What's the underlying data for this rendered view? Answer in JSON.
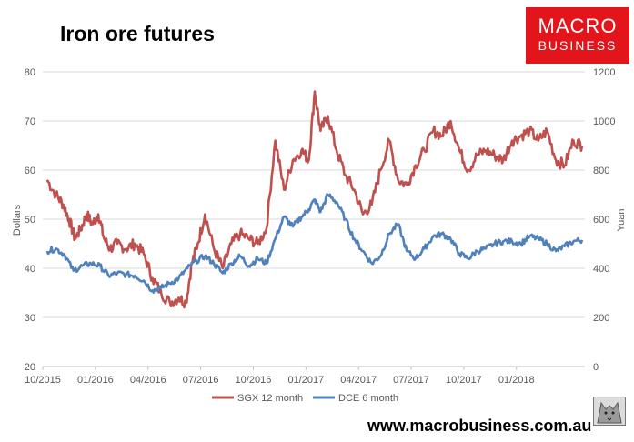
{
  "header": {
    "title": "Iron ore futures",
    "logo_line1": "MACRO",
    "logo_line2": "BUSINESS",
    "url": "www.macrobusiness.com.au"
  },
  "colors": {
    "sgx": "#c0504d",
    "dce": "#4f81bd",
    "logo_bg": "#e4141b",
    "grid": "#d9d9d9"
  },
  "chart_data": {
    "type": "line",
    "title": "Iron ore futures",
    "x_tick_labels": [
      "10/2015",
      "01/2016",
      "04/2016",
      "07/2016",
      "10/2016",
      "01/2017",
      "04/2017",
      "07/2017",
      "10/2017",
      "01/2018"
    ],
    "y_left": {
      "label": "Dollars",
      "ticks": [
        20,
        30,
        40,
        50,
        60,
        70,
        80
      ],
      "range": [
        20,
        80
      ]
    },
    "y_right": {
      "label": "Yuan",
      "ticks": [
        0,
        200,
        400,
        600,
        800,
        1000,
        1200
      ],
      "range": [
        0,
        1200
      ]
    },
    "grid": "horizontal",
    "legend_position": "bottom",
    "series": [
      {
        "name": "SGX 12 month",
        "axis": "left",
        "color": "#c0504d",
        "points": [
          [
            "10/2015",
            58
          ],
          [
            "10/2015",
            55
          ],
          [
            "11/2015",
            53
          ],
          [
            "11/2015",
            50
          ],
          [
            "11/2015",
            46
          ],
          [
            "12/2015",
            48
          ],
          [
            "12/2015",
            51
          ],
          [
            "12/2015",
            49
          ],
          [
            "01/2016",
            51
          ],
          [
            "01/2016",
            46
          ],
          [
            "01/2016",
            44
          ],
          [
            "02/2016",
            45
          ],
          [
            "02/2016",
            44
          ],
          [
            "03/2016",
            45
          ],
          [
            "03/2016",
            43
          ],
          [
            "04/2016",
            38
          ],
          [
            "04/2016",
            35
          ],
          [
            "05/2016",
            33
          ],
          [
            "05/2016",
            34
          ],
          [
            "06/2016",
            33
          ],
          [
            "06/2016",
            41
          ],
          [
            "06/2016",
            45
          ],
          [
            "07/2016",
            51
          ],
          [
            "07/2016",
            44
          ],
          [
            "08/2016",
            40
          ],
          [
            "08/2016",
            45
          ],
          [
            "09/2016",
            47
          ],
          [
            "09/2016",
            46
          ],
          [
            "10/2016",
            45
          ],
          [
            "10/2016",
            48
          ],
          [
            "11/2016",
            66
          ],
          [
            "11/2016",
            56
          ],
          [
            "12/2016",
            62
          ],
          [
            "12/2016",
            64
          ],
          [
            "01/2017",
            62
          ],
          [
            "01/2017",
            76
          ],
          [
            "01/2017",
            68
          ],
          [
            "02/2017",
            71
          ],
          [
            "02/2017",
            64
          ],
          [
            "03/2017",
            59
          ],
          [
            "03/2017",
            56
          ],
          [
            "04/2017",
            51
          ],
          [
            "04/2017",
            53
          ],
          [
            "05/2017",
            60
          ],
          [
            "05/2017",
            66
          ],
          [
            "06/2017",
            58
          ],
          [
            "06/2017",
            57
          ],
          [
            "07/2017",
            61
          ],
          [
            "07/2017",
            64
          ],
          [
            "08/2017",
            68
          ],
          [
            "08/2017",
            67
          ],
          [
            "09/2017",
            70
          ],
          [
            "09/2017",
            64
          ],
          [
            "10/2017",
            60
          ],
          [
            "10/2017",
            63
          ],
          [
            "11/2017",
            64
          ],
          [
            "11/2017",
            63
          ],
          [
            "12/2017",
            62
          ],
          [
            "12/2017",
            66
          ],
          [
            "01/2018",
            67
          ],
          [
            "01/2018",
            68
          ],
          [
            "02/2018",
            66
          ],
          [
            "02/2018",
            68
          ],
          [
            "03/2018",
            62
          ],
          [
            "03/2018",
            61
          ],
          [
            "04/2018",
            66
          ],
          [
            "04/2018",
            65
          ]
        ]
      },
      {
        "name": "DCE 6 month",
        "axis": "right",
        "color": "#4f81bd",
        "points": [
          [
            "10/2015",
            470
          ],
          [
            "10/2015",
            480
          ],
          [
            "11/2015",
            455
          ],
          [
            "11/2015",
            390
          ],
          [
            "12/2015",
            410
          ],
          [
            "12/2015",
            420
          ],
          [
            "01/2016",
            410
          ],
          [
            "01/2016",
            370
          ],
          [
            "02/2016",
            380
          ],
          [
            "02/2016",
            375
          ],
          [
            "03/2016",
            370
          ],
          [
            "03/2016",
            350
          ],
          [
            "04/2016",
            310
          ],
          [
            "04/2016",
            320
          ],
          [
            "05/2016",
            340
          ],
          [
            "05/2016",
            360
          ],
          [
            "06/2016",
            400
          ],
          [
            "06/2016",
            430
          ],
          [
            "07/2016",
            450
          ],
          [
            "07/2016",
            420
          ],
          [
            "08/2016",
            380
          ],
          [
            "08/2016",
            420
          ],
          [
            "09/2016",
            450
          ],
          [
            "09/2016",
            410
          ],
          [
            "10/2016",
            440
          ],
          [
            "10/2016",
            420
          ],
          [
            "11/2016",
            520
          ],
          [
            "11/2016",
            610
          ],
          [
            "12/2016",
            570
          ],
          [
            "12/2016",
            610
          ],
          [
            "01/2017",
            640
          ],
          [
            "01/2017",
            680
          ],
          [
            "01/2017",
            630
          ],
          [
            "02/2017",
            700
          ],
          [
            "02/2017",
            670
          ],
          [
            "03/2017",
            600
          ],
          [
            "03/2017",
            520
          ],
          [
            "04/2017",
            470
          ],
          [
            "04/2017",
            420
          ],
          [
            "05/2017",
            450
          ],
          [
            "05/2017",
            540
          ],
          [
            "06/2017",
            580
          ],
          [
            "06/2017",
            470
          ],
          [
            "07/2017",
            440
          ],
          [
            "07/2017",
            480
          ],
          [
            "08/2017",
            530
          ],
          [
            "08/2017",
            540
          ],
          [
            "09/2017",
            520
          ],
          [
            "09/2017",
            460
          ],
          [
            "10/2017",
            440
          ],
          [
            "10/2017",
            470
          ],
          [
            "11/2017",
            480
          ],
          [
            "11/2017",
            500
          ],
          [
            "12/2017",
            510
          ],
          [
            "12/2017",
            510
          ],
          [
            "01/2018",
            500
          ],
          [
            "01/2018",
            530
          ],
          [
            "02/2018",
            520
          ],
          [
            "02/2018",
            500
          ],
          [
            "03/2018",
            470
          ],
          [
            "03/2018",
            490
          ],
          [
            "04/2018",
            510
          ],
          [
            "04/2018",
            515
          ]
        ]
      }
    ]
  }
}
